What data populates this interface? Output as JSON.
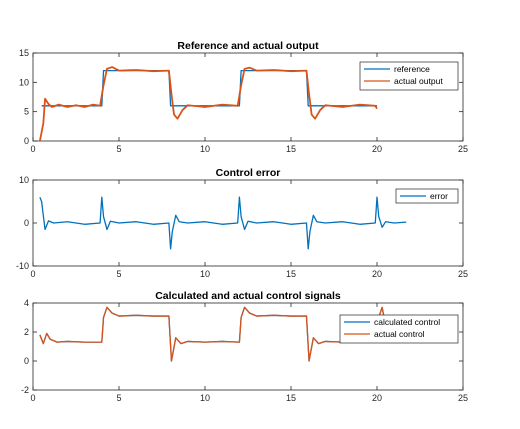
{
  "chart_data": [
    {
      "type": "line",
      "title": "Reference and actual output",
      "xlim": [
        0,
        25
      ],
      "ylim": [
        0,
        15
      ],
      "xticks": [
        "0",
        "5",
        "10",
        "15",
        "20",
        "25"
      ],
      "yticks": [
        "0",
        "5",
        "10",
        "15"
      ],
      "legend_position": "top-right",
      "grid": false,
      "series": [
        {
          "name": "reference",
          "color": "#0072BD",
          "x": [
            0.5,
            4,
            4.1,
            7.9,
            8.0,
            12.0,
            12.1,
            15.9,
            16.0,
            20.0
          ],
          "y": [
            6,
            6,
            12,
            12,
            6,
            6,
            12,
            12,
            6,
            6
          ]
        },
        {
          "name": "actual output",
          "color": "#D95319",
          "x": [
            0.4,
            0.6,
            0.7,
            0.9,
            1.1,
            1.5,
            2.0,
            2.5,
            3.0,
            3.5,
            3.9,
            4.1,
            4.3,
            4.6,
            5.0,
            6.0,
            7.0,
            7.9,
            8.05,
            8.2,
            8.4,
            8.7,
            9.0,
            10.0,
            11.0,
            11.9,
            12.1,
            12.3,
            12.6,
            13.0,
            14.0,
            15.0,
            15.9,
            16.05,
            16.2,
            16.4,
            16.7,
            17.0,
            18.0,
            19.0,
            19.9,
            20.0
          ],
          "y": [
            0,
            3,
            7.2,
            6.3,
            5.8,
            6.2,
            5.8,
            6.1,
            5.8,
            6.2,
            6.0,
            9.5,
            12.3,
            12.6,
            12.0,
            12.1,
            11.9,
            12.0,
            8.0,
            4.5,
            3.8,
            5.3,
            6.1,
            5.8,
            6.2,
            6.0,
            9.5,
            12.3,
            12.5,
            12.0,
            12.1,
            11.9,
            12.0,
            8.0,
            4.5,
            3.8,
            5.3,
            6.1,
            5.8,
            6.2,
            6.0,
            5.5
          ]
        }
      ]
    },
    {
      "type": "line",
      "title": "Control error",
      "xlim": [
        0,
        25
      ],
      "ylim": [
        -10,
        10
      ],
      "xticks": [
        "0",
        "5",
        "10",
        "15",
        "20",
        "25"
      ],
      "yticks": [
        "-10",
        "0",
        "10"
      ],
      "legend_position": "top-right",
      "grid": false,
      "series": [
        {
          "name": "error",
          "color": "#0072BD",
          "x": [
            0.4,
            0.5,
            0.7,
            0.9,
            1.2,
            2.0,
            3.0,
            3.9,
            4.0,
            4.1,
            4.3,
            4.5,
            5.0,
            6.0,
            7.0,
            7.9,
            8.0,
            8.1,
            8.3,
            8.5,
            9.0,
            10.0,
            11.0,
            11.9,
            12.0,
            12.1,
            12.3,
            12.5,
            13.0,
            14.0,
            15.0,
            15.9,
            16.0,
            16.1,
            16.3,
            16.5,
            17.0,
            18.0,
            19.0,
            19.9,
            20.0,
            20.1,
            20.3,
            20.5,
            21.0,
            21.7
          ],
          "y": [
            6.0,
            5.0,
            -1.5,
            0.5,
            0.0,
            0.3,
            -0.3,
            0.0,
            6.0,
            1.5,
            -1.5,
            0.4,
            0.0,
            0.3,
            -0.3,
            0.0,
            -6.0,
            -2.0,
            1.8,
            0.3,
            0.0,
            0.3,
            -0.3,
            0.0,
            6.0,
            1.5,
            -1.5,
            0.4,
            0.0,
            0.3,
            -0.3,
            0.0,
            -6.0,
            -2.0,
            1.8,
            0.3,
            0.0,
            0.3,
            -0.3,
            0.0,
            6.0,
            1.5,
            -1.0,
            0.3,
            0.0,
            0.2
          ]
        }
      ]
    },
    {
      "type": "line",
      "title": "Calculated and actual control signals",
      "xlim": [
        0,
        25
      ],
      "ylim": [
        -2,
        4
      ],
      "xticks": [
        "0",
        "5",
        "10",
        "15",
        "20",
        "25"
      ],
      "yticks": [
        "-2",
        "0",
        "2",
        "4"
      ],
      "legend_position": "top-right",
      "grid": false,
      "series": [
        {
          "name": "calculated control",
          "color": "#0072BD",
          "x": [
            0.4,
            0.6,
            0.8,
            1.0,
            1.4,
            2.0,
            3.0,
            4.0,
            4.1,
            4.3,
            4.6,
            5.0,
            6.0,
            7.0,
            7.9,
            8.05,
            8.3,
            8.6,
            9.0,
            10.0,
            11.0,
            12.0,
            12.1,
            12.3,
            12.6,
            13.0,
            14.0,
            15.0,
            15.9,
            16.05,
            16.3,
            16.6,
            17.0,
            18.0,
            19.0,
            20.0,
            20.1,
            20.3,
            20.6,
            21.0,
            21.5
          ],
          "y": [
            1.8,
            1.2,
            1.9,
            1.5,
            1.3,
            1.35,
            1.3,
            1.3,
            3.0,
            3.7,
            3.3,
            3.1,
            3.15,
            3.1,
            3.1,
            0.0,
            1.6,
            1.2,
            1.35,
            1.3,
            1.35,
            1.3,
            3.0,
            3.7,
            3.3,
            3.1,
            3.15,
            3.1,
            3.1,
            0.0,
            1.6,
            1.2,
            1.35,
            1.3,
            1.35,
            1.3,
            3.0,
            3.7,
            1.8,
            1.3,
            1.3
          ]
        },
        {
          "name": "actual control",
          "color": "#D95319",
          "x": [
            0.4,
            0.6,
            0.8,
            1.0,
            1.4,
            2.0,
            3.0,
            4.0,
            4.1,
            4.3,
            4.6,
            5.0,
            6.0,
            7.0,
            7.9,
            8.05,
            8.3,
            8.6,
            9.0,
            10.0,
            11.0,
            12.0,
            12.1,
            12.3,
            12.6,
            13.0,
            14.0,
            15.0,
            15.9,
            16.05,
            16.3,
            16.6,
            17.0,
            18.0,
            19.0,
            20.0,
            20.1,
            20.3,
            20.6,
            21.0,
            21.5
          ],
          "y": [
            1.8,
            1.2,
            1.9,
            1.5,
            1.3,
            1.35,
            1.3,
            1.3,
            3.0,
            3.7,
            3.3,
            3.1,
            3.15,
            3.1,
            3.1,
            0.0,
            1.6,
            1.2,
            1.35,
            1.3,
            1.35,
            1.3,
            3.0,
            3.7,
            3.3,
            3.1,
            3.15,
            3.1,
            3.1,
            0.0,
            1.6,
            1.2,
            1.35,
            1.3,
            1.35,
            1.3,
            3.0,
            3.7,
            1.8,
            1.3,
            1.3
          ]
        }
      ]
    }
  ]
}
